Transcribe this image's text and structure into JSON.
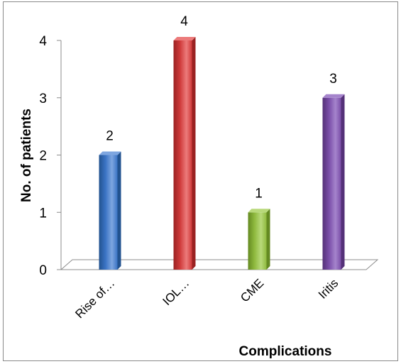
{
  "chart_data": {
    "type": "bar",
    "categories": [
      "Rise of…",
      "IOL…",
      "CME",
      "Iritis"
    ],
    "values": [
      2,
      4,
      1,
      3
    ],
    "data_labels": [
      "2",
      "4",
      "1",
      "3"
    ],
    "title": "",
    "xlabel": "Complications",
    "ylabel": "No. of patients",
    "ylim": [
      0,
      4
    ],
    "yticks": [
      "0",
      "1",
      "2",
      "3",
      "4"
    ],
    "grid": false,
    "legend": "none",
    "style": "3d-column",
    "colors": [
      "#3a73c4",
      "#cf3a3a",
      "#8fba3e",
      "#7a4ea8"
    ],
    "colors_dark": [
      "#22528f",
      "#9a2222",
      "#648a22",
      "#553178"
    ],
    "colors_light": [
      "#7ea6e0",
      "#ec7b7b",
      "#b8d97a",
      "#a584cc"
    ]
  }
}
